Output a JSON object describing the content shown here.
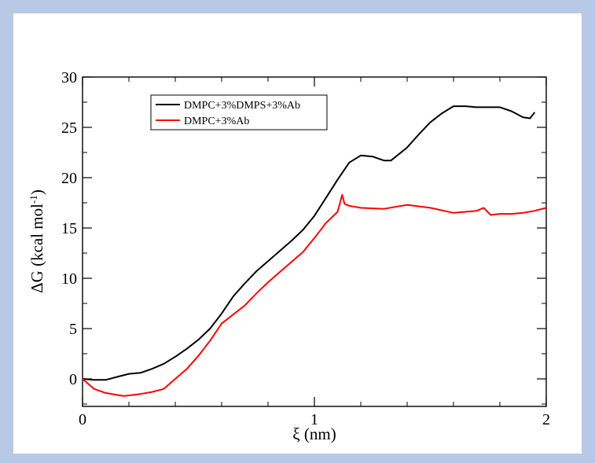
{
  "chart_data": {
    "type": "line",
    "title": "",
    "xlabel": "ξ (nm)",
    "ylabel_main": "ΔG (kcal mol",
    "ylabel_sup": "-1",
    "ylabel_close": ")",
    "xlim": [
      0,
      2
    ],
    "ylim": [
      -2,
      30
    ],
    "xticks": [
      0,
      1,
      2
    ],
    "xtick_labels": [
      "0",
      "1",
      "2"
    ],
    "yticks": [
      0,
      5,
      10,
      15,
      20,
      25,
      30
    ],
    "ytick_labels": [
      "0",
      "5",
      "10",
      "15",
      "20",
      "25",
      "30"
    ],
    "legend_position": "top-left",
    "grid": false,
    "series": [
      {
        "name": "DMPC+3%DMPS+3%Ab",
        "color": "#000000",
        "x": [
          0,
          0.05,
          0.1,
          0.15,
          0.2,
          0.25,
          0.3,
          0.35,
          0.4,
          0.45,
          0.5,
          0.55,
          0.6,
          0.65,
          0.7,
          0.75,
          0.8,
          0.85,
          0.9,
          0.95,
          1.0,
          1.05,
          1.1,
          1.15,
          1.2,
          1.25,
          1.3,
          1.33,
          1.4,
          1.45,
          1.5,
          1.55,
          1.6,
          1.65,
          1.7,
          1.75,
          1.8,
          1.85,
          1.9,
          1.93,
          1.95
        ],
        "y": [
          0,
          -0.1,
          -0.1,
          0.2,
          0.5,
          0.6,
          1.0,
          1.5,
          2.2,
          3.0,
          3.9,
          5.0,
          6.5,
          8.2,
          9.5,
          10.7,
          11.7,
          12.7,
          13.7,
          14.8,
          16.2,
          18.0,
          19.8,
          21.5,
          22.2,
          22.1,
          21.7,
          21.7,
          23.0,
          24.3,
          25.5,
          26.4,
          27.1,
          27.1,
          27.0,
          27.0,
          27.0,
          26.6,
          26.0,
          25.9,
          26.5
        ]
      },
      {
        "name": "DMPC+3%Ab",
        "color": "#ff0000",
        "x": [
          0,
          0.05,
          0.1,
          0.15,
          0.18,
          0.25,
          0.3,
          0.35,
          0.4,
          0.45,
          0.5,
          0.55,
          0.6,
          0.65,
          0.7,
          0.75,
          0.8,
          0.85,
          0.9,
          0.95,
          1.0,
          1.05,
          1.1,
          1.12,
          1.13,
          1.15,
          1.2,
          1.3,
          1.4,
          1.5,
          1.6,
          1.7,
          1.73,
          1.76,
          1.8,
          1.85,
          1.9,
          1.95,
          2.0
        ],
        "y": [
          0,
          -1.0,
          -1.4,
          -1.6,
          -1.7,
          -1.5,
          -1.3,
          -1.0,
          0,
          1.0,
          2.3,
          3.8,
          5.5,
          6.4,
          7.3,
          8.5,
          9.6,
          10.6,
          11.6,
          12.6,
          14.0,
          15.5,
          16.6,
          18.3,
          17.4,
          17.2,
          17.0,
          16.9,
          17.3,
          17.0,
          16.5,
          16.7,
          17.0,
          16.3,
          16.4,
          16.4,
          16.5,
          16.7,
          17.0
        ]
      }
    ]
  }
}
